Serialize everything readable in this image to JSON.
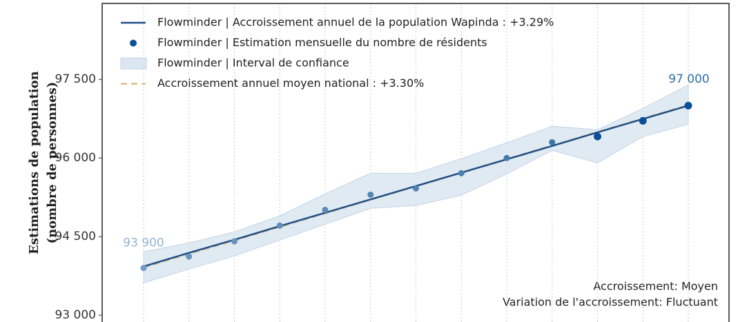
{
  "chart_data": {
    "type": "line",
    "ylabel": [
      "Estimations de population",
      "(nombre de personnes)"
    ],
    "categories": [
      null,
      null,
      null,
      null,
      null,
      null,
      null,
      null,
      null,
      null,
      null,
      null,
      null
    ],
    "ylim": [
      92870,
      98950
    ],
    "yticks": [
      {
        "value": 93000,
        "label": "93 000"
      },
      {
        "value": 94500,
        "label": "94 500"
      },
      {
        "value": 96000,
        "label": "96 000"
      },
      {
        "value": 97500,
        "label": "97 500"
      }
    ],
    "xgrid": true,
    "legend": "upper left",
    "series": [
      {
        "name": "Flowminder | Accroissement annuel de la population Wapinda : +3.29%",
        "kind": "line",
        "color": "#1f4e85",
        "values": [
          93930,
          94190,
          94440,
          94700,
          94955,
          95210,
          95465,
          95720,
          95975,
          96230,
          96490,
          96745,
          97000
        ]
      },
      {
        "name": "Flowminder | Estimation mensuelle du nombre de résidents",
        "kind": "scatter",
        "color": "#0b4f96",
        "point_colors": [
          "#6f9cc4",
          "#6a97c0",
          "#6593bd",
          "#5f8fba",
          "#5a8bb7",
          "#5587b4",
          "#5083b1",
          "#4a7fae",
          "#457bab",
          "#4077a8",
          "#0b4f96",
          "#0b4f96",
          "#0b4f96"
        ],
        "values": [
          93900,
          94120,
          94410,
          94710,
          95010,
          95300,
          95420,
          95710,
          96000,
          96300,
          96410,
          96710,
          97000
        ],
        "value_labels": [
          "93 900",
          null,
          null,
          null,
          null,
          null,
          null,
          null,
          null,
          null,
          null,
          null,
          "97 000"
        ]
      },
      {
        "name": "Flowminder | Interval de confiance",
        "kind": "band",
        "color": "#dbe6f1",
        "upper": [
          94210,
          94380,
          94590,
          94895,
          95316,
          95710,
          95710,
          95987,
          96290,
          96605,
          96540,
          96947,
          97395
        ],
        "lower": [
          93618,
          93882,
          94132,
          94434,
          94737,
          95040,
          95092,
          95290,
          95697,
          96145,
          95908,
          96408,
          96645
        ]
      },
      {
        "name": "Accroissement annuel moyen national : +3.30%",
        "kind": "dashed",
        "color": "#d9bd8a",
        "values": [
          93910,
          94170,
          94425,
          94685,
          94945,
          95205,
          95460,
          95720,
          95980,
          96240,
          96495,
          96755,
          97010
        ]
      }
    ],
    "annotations": [
      "Accroissement: Moyen",
      "Variation de l'accroissement: Fluctuant"
    ]
  }
}
